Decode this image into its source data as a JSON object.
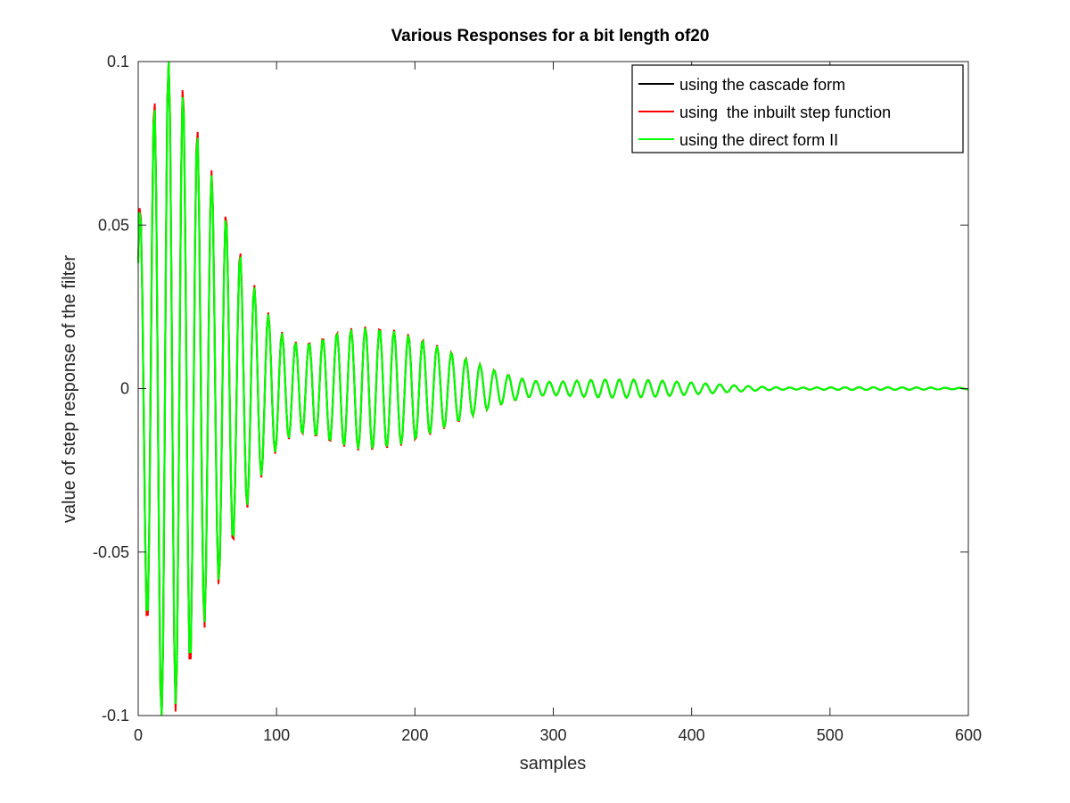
{
  "chart_data": {
    "type": "line",
    "title": "Various Responses for a bit length of20",
    "xlabel": "samples",
    "ylabel": "value of step response of the filter",
    "xlim": [
      0,
      600
    ],
    "ylim": [
      -0.1,
      0.1
    ],
    "x_ticks": [
      "0",
      "100",
      "200",
      "300",
      "400",
      "500",
      "600"
    ],
    "y_ticks": [
      "-0.1",
      "-0.05",
      "0",
      "0.05",
      "0.1"
    ],
    "grid": false,
    "legend_position": "top-right",
    "signal_model": {
      "description": "damped oscillation approximated from the plot",
      "samples": 600,
      "approx_period_samples": 10.2,
      "approx_peak_amplitude": 0.097,
      "approx_peak_at_sample": 18
    },
    "series": [
      {
        "name": "using the cascade form",
        "color": "#000000"
      },
      {
        "name": "using  the inbuilt step function",
        "color": "#ff0000"
      },
      {
        "name": "using the direct form II",
        "color": "#00ff00"
      }
    ]
  }
}
